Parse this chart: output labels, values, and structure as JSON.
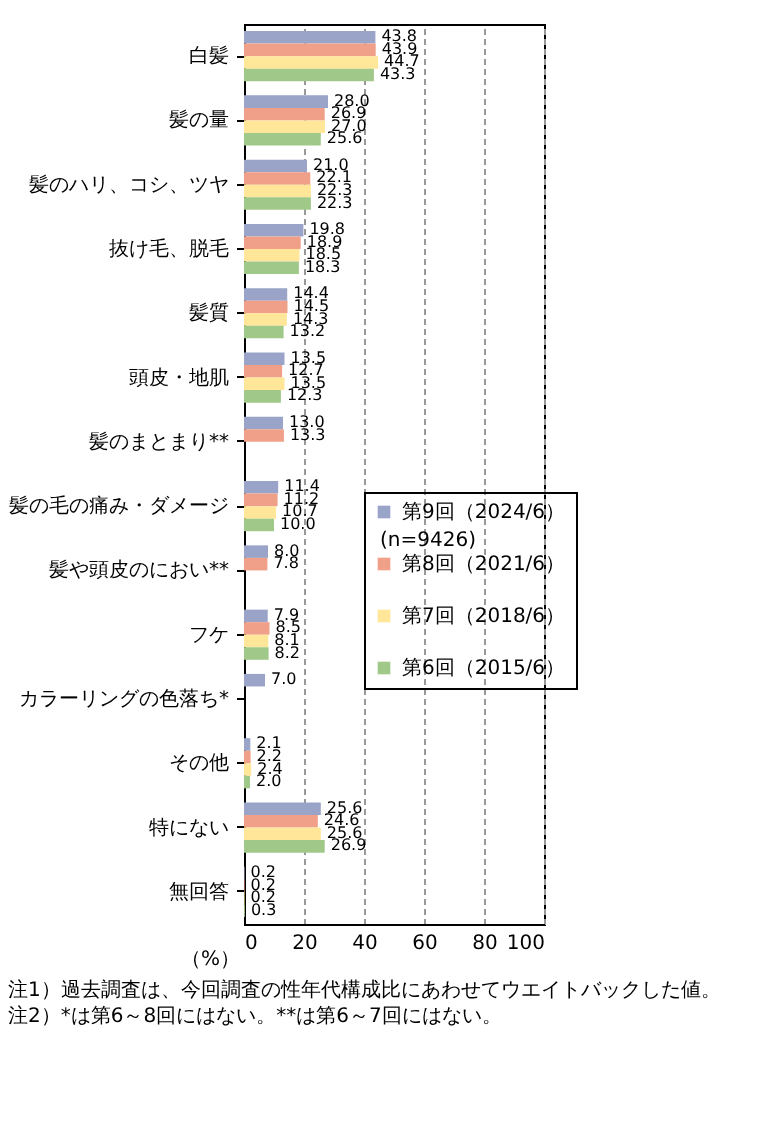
{
  "chart_data": {
    "type": "bar",
    "orientation": "horizontal",
    "categories": [
      "白髪",
      "髪の量",
      "髪のハリ、コシ、ツヤ",
      "抜け毛、脱毛",
      "髪質",
      "頭皮・地肌",
      "髪のまとまり**",
      "髪の毛の痛み・ダメージ",
      "髪や頭皮のにおい**",
      "フケ",
      "カラーリングの色落ち*",
      "その他",
      "特にない",
      "無回答"
    ],
    "series": [
      {
        "name": "第9回（2024/6）",
        "color": "#9aa3c8",
        "values": [
          43.8,
          28.0,
          21.0,
          19.8,
          14.4,
          13.5,
          13.0,
          11.4,
          8.0,
          7.9,
          7.0,
          2.1,
          25.6,
          0.2
        ],
        "value_labels": [
          "43.8",
          "28.0",
          "21.0",
          "19.8",
          "14.4",
          "13.5",
          "13.0",
          "11.4",
          "8.0",
          "7.9",
          "7.0",
          "2.1",
          "25.6",
          "0.2"
        ]
      },
      {
        "name": "第8回（2021/6）",
        "color": "#f0a088",
        "values": [
          43.9,
          26.9,
          22.1,
          18.9,
          14.5,
          12.7,
          13.3,
          11.2,
          7.8,
          8.5,
          null,
          2.2,
          24.6,
          0.2
        ],
        "value_labels": [
          "43.9",
          "26.9",
          "22.1",
          "18.9",
          "14.5",
          "12.7",
          "13.3",
          "11.2",
          "7.8",
          "8.5",
          null,
          "2.2",
          "24.6",
          "0.2"
        ]
      },
      {
        "name": "第7回（2018/6）",
        "color": "#ffe699",
        "values": [
          44.7,
          27.0,
          22.3,
          18.5,
          14.3,
          13.5,
          null,
          10.7,
          null,
          8.1,
          null,
          2.4,
          25.6,
          0.2
        ],
        "value_labels": [
          "44.7",
          "27.0",
          "22.3",
          "18.5",
          "14.3",
          "13.5",
          null,
          "10.7",
          null,
          "8.1",
          null,
          "2.4",
          "25.6",
          "0.2"
        ]
      },
      {
        "name": "第6回（2015/6）",
        "color": "#a0c888",
        "values": [
          43.3,
          25.6,
          22.3,
          18.3,
          13.2,
          12.3,
          null,
          10.0,
          null,
          8.2,
          null,
          2.0,
          26.9,
          0.3
        ],
        "value_labels": [
          "43.3",
          "25.6",
          "22.3",
          "18.3",
          "13.2",
          "12.3",
          null,
          "10.0",
          null,
          "8.2",
          null,
          "2.0",
          "26.9",
          "0.3"
        ]
      }
    ],
    "xlabel": "（%）",
    "xlim": [
      0,
      100
    ],
    "xticks": [
      0,
      20,
      40,
      60,
      80,
      100
    ],
    "grid": "x",
    "legend": "right",
    "annotations": [
      "(n=9426)",
      "注1）過去調査は、今回調査の性年代構成比にあわせてウエイトバックした値。",
      "注2）*は第6～8回にはない。**は第6～7回にはない。"
    ]
  }
}
